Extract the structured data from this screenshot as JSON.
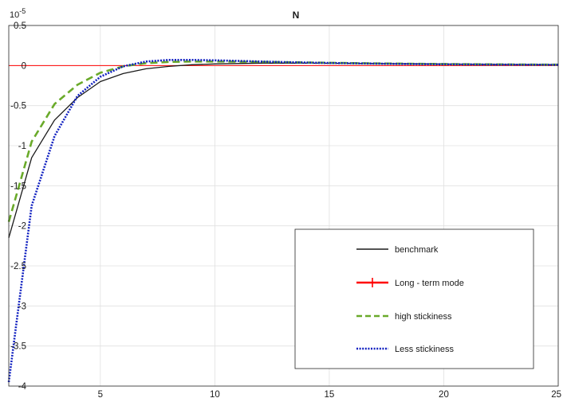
{
  "chart_data": {
    "type": "line",
    "title": "N",
    "xlabel": "",
    "ylabel": "",
    "y_exponent_base": "10",
    "y_exponent_power": "-5",
    "xlim": [
      1,
      25
    ],
    "ylim": [
      -4,
      0.5
    ],
    "grid": true,
    "x_ticks": [
      5,
      10,
      15,
      20,
      25
    ],
    "x_tick_labels": [
      "5",
      "10",
      "15",
      "20",
      "25"
    ],
    "y_ticks": [
      0.5,
      0,
      -0.5,
      -1,
      -1.5,
      -2,
      -2.5,
      -3,
      -3.5,
      -4
    ],
    "y_tick_labels": [
      "0.5",
      "0",
      "-0.5",
      "-1",
      "-1.5",
      "-2",
      "-2.5",
      "-3",
      "-3.5",
      "-4"
    ],
    "legend_position": "lower-right",
    "x": [
      1,
      2,
      3,
      4,
      5,
      6,
      7,
      8,
      9,
      10,
      11,
      12,
      13,
      14,
      15,
      16,
      17,
      18,
      19,
      20,
      21,
      22,
      23,
      24,
      25
    ],
    "series": [
      {
        "name": "benchmark",
        "color": "#1a1a1a",
        "style": "solid",
        "values": [
          -2.15,
          -1.15,
          -0.68,
          -0.4,
          -0.2,
          -0.1,
          -0.04,
          -0.01,
          0.01,
          0.02,
          0.025,
          0.03,
          0.03,
          0.03,
          0.028,
          0.026,
          0.024,
          0.022,
          0.02,
          0.018,
          0.016,
          0.014,
          0.013,
          0.012,
          0.011
        ]
      },
      {
        "name": "Long - term mode",
        "color": "#ff0000",
        "style": "solid",
        "values": [
          0,
          0,
          0,
          0,
          0,
          0,
          0,
          0,
          0,
          0,
          0,
          0,
          0,
          0,
          0,
          0,
          0,
          0,
          0,
          0,
          0,
          0,
          0,
          0,
          0
        ]
      },
      {
        "name": "high stickiness",
        "color": "#6aaa2a",
        "style": "dashed",
        "values": [
          -1.95,
          -0.95,
          -0.48,
          -0.24,
          -0.09,
          -0.01,
          0.03,
          0.045,
          0.05,
          0.05,
          0.048,
          0.045,
          0.042,
          0.038,
          0.034,
          0.03,
          0.027,
          0.024,
          0.021,
          0.019,
          0.017,
          0.015,
          0.013,
          0.012,
          0.011
        ]
      },
      {
        "name": "Less stickiness",
        "color": "#1020c0",
        "style": "dotted",
        "values": [
          -3.95,
          -1.75,
          -0.88,
          -0.38,
          -0.14,
          -0.01,
          0.05,
          0.07,
          0.07,
          0.065,
          0.058,
          0.05,
          0.043,
          0.037,
          0.032,
          0.028,
          0.024,
          0.021,
          0.018,
          0.016,
          0.014,
          0.012,
          0.011,
          0.01,
          0.009
        ]
      }
    ]
  }
}
